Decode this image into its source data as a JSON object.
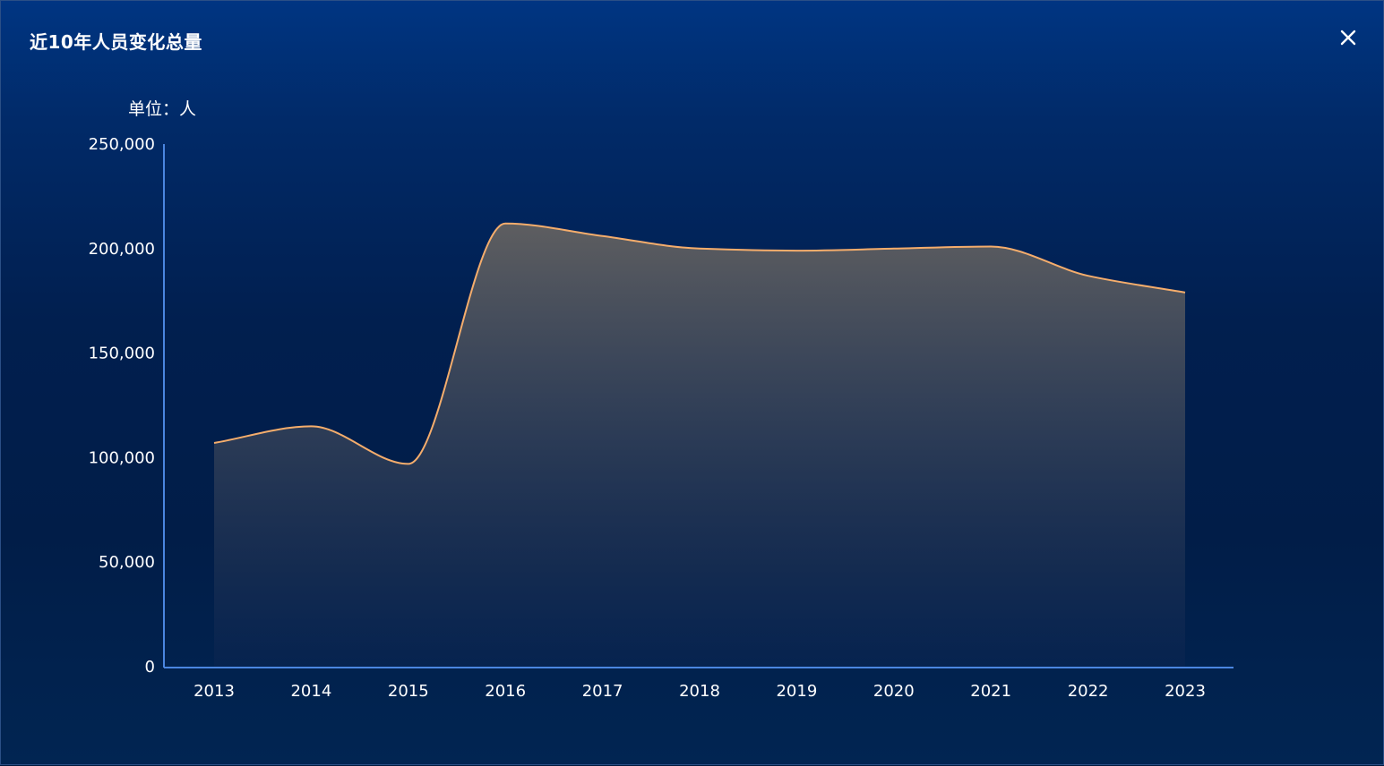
{
  "modal": {
    "title": "近10年人员变化总量",
    "close_icon": "close-icon"
  },
  "chart_data": {
    "type": "area",
    "title": "近10年人员变化总量",
    "unit_label": "单位：人",
    "smooth": true,
    "categories": [
      "2013",
      "2014",
      "2015",
      "2016",
      "2017",
      "2018",
      "2019",
      "2020",
      "2021",
      "2022",
      "2023"
    ],
    "series": [
      {
        "values": [
          107000,
          115000,
          97000,
          212000,
          206000,
          200000,
          199000,
          200000,
          201000,
          187000,
          179000
        ]
      }
    ],
    "ylim": [
      0,
      250000
    ],
    "yticks": [
      "0",
      "50,000",
      "100,000",
      "150,000",
      "200,000",
      "250,000"
    ],
    "grid": false,
    "legend": "none",
    "colors": {
      "line": "#f5ad6c",
      "area_top": "#5e5e60",
      "area_bottom": "#0a2450",
      "axis": "#4a86e0",
      "text": "#ffffff"
    }
  }
}
